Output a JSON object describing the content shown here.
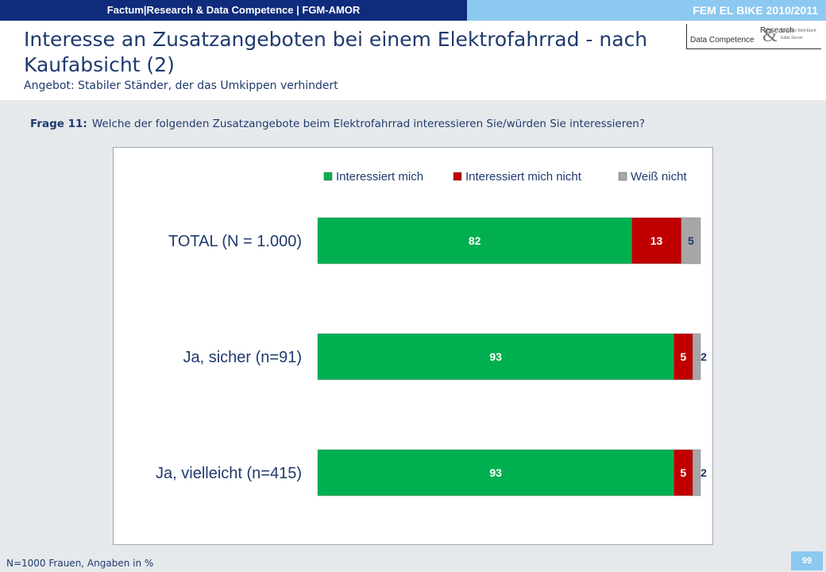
{
  "topbar": {
    "left_text": "Factum|Research & Data Competence | FGM-AMOR",
    "right_text": "FEM EL BIKE 2010/2011"
  },
  "header": {
    "title": "Interesse an Zusatzangeboten bei einem Elektrofahrrad - nach Kaufabsicht (2)",
    "subtitle": "Angebot: Stabiler Ständer, der das Umkippen verhindert",
    "logo": {
      "line1": "Research",
      "line2": "Data Competence",
      "amp": "&",
      "small1": "Susanne Wolf-Eberl",
      "small2": "Edda Sercer"
    }
  },
  "question": {
    "label": "Frage 11:",
    "text": "Welche der folgenden Zusatzangebote beim Elektrofahrrad interessieren Sie/würden Sie interessieren?"
  },
  "chart_data": {
    "type": "bar",
    "orientation": "horizontal",
    "stacked": true,
    "categories": [
      "TOTAL (N = 1.000)",
      "Ja, sicher (n=91)",
      "Ja, vielleicht (n=415)"
    ],
    "series": [
      {
        "name": "Interessiert mich",
        "values": [
          82,
          93,
          93
        ],
        "color": "#00b050",
        "label_color": "#ffffff"
      },
      {
        "name": "Interessiert mich nicht",
        "values": [
          13,
          5,
          5
        ],
        "color": "#c00000",
        "label_color": "#ffffff"
      },
      {
        "name": "Weiß nicht",
        "values": [
          5,
          2,
          2
        ],
        "color": "#a6a6a6",
        "label_color": "#1f3a6e"
      }
    ],
    "xlim": [
      0,
      100
    ],
    "legend": "top-right",
    "grid": false
  },
  "footer": {
    "note": "N=1000 Frauen, Angaben in %",
    "page": "99"
  }
}
